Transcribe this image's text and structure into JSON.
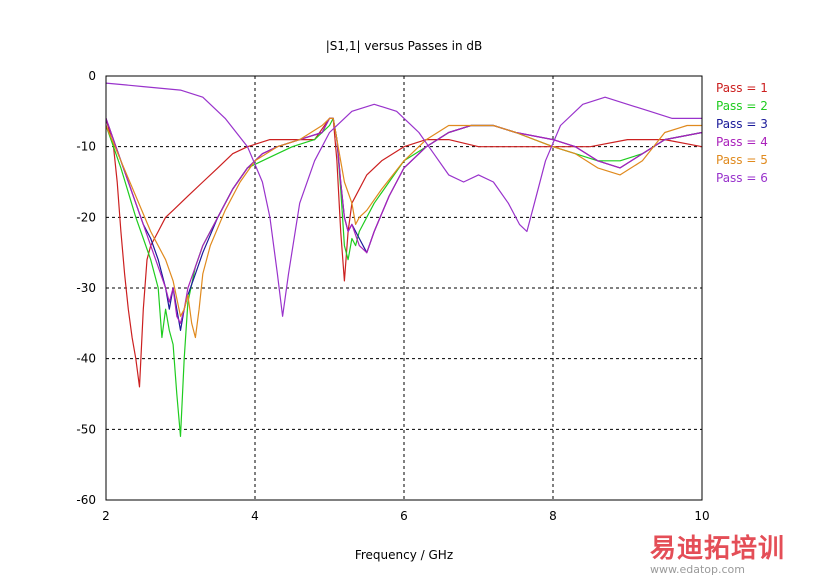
{
  "chart_data": {
    "type": "line",
    "title": "|S1,1| versus Passes in dB",
    "xlabel": "Frequency / GHz",
    "ylabel": "",
    "xlim": [
      2,
      10
    ],
    "ylim": [
      -60,
      0
    ],
    "xticks": [
      2,
      4,
      6,
      8,
      10
    ],
    "yticks": [
      0,
      -10,
      -20,
      -30,
      -40,
      -50,
      -60
    ],
    "grid": true,
    "legend_position": "right",
    "series": [
      {
        "name": "Pass = 1",
        "color": "#cc2020",
        "points": [
          [
            2.0,
            -6
          ],
          [
            2.1,
            -10
          ],
          [
            2.15,
            -15
          ],
          [
            2.2,
            -22
          ],
          [
            2.25,
            -28
          ],
          [
            2.3,
            -33
          ],
          [
            2.35,
            -37
          ],
          [
            2.4,
            -40
          ],
          [
            2.45,
            -44
          ],
          [
            2.5,
            -33
          ],
          [
            2.55,
            -26
          ],
          [
            2.6,
            -24
          ],
          [
            2.7,
            -22
          ],
          [
            2.8,
            -20
          ],
          [
            2.9,
            -19
          ],
          [
            3.0,
            -18
          ],
          [
            3.1,
            -17
          ],
          [
            3.3,
            -15
          ],
          [
            3.5,
            -13
          ],
          [
            3.7,
            -11
          ],
          [
            3.9,
            -10
          ],
          [
            4.2,
            -9
          ],
          [
            4.5,
            -9
          ],
          [
            4.8,
            -9
          ],
          [
            5.0,
            -6
          ],
          [
            5.05,
            -6
          ],
          [
            5.1,
            -12
          ],
          [
            5.15,
            -22
          ],
          [
            5.2,
            -29
          ],
          [
            5.25,
            -22
          ],
          [
            5.3,
            -18
          ],
          [
            5.5,
            -14
          ],
          [
            5.7,
            -12
          ],
          [
            6.0,
            -10
          ],
          [
            6.3,
            -9
          ],
          [
            6.6,
            -9
          ],
          [
            7.0,
            -10
          ],
          [
            7.5,
            -10
          ],
          [
            8.0,
            -10
          ],
          [
            8.5,
            -10
          ],
          [
            9.0,
            -9
          ],
          [
            9.5,
            -9
          ],
          [
            10.0,
            -10
          ]
        ]
      },
      {
        "name": "Pass = 2",
        "color": "#1fcc1f",
        "points": [
          [
            2.0,
            -7
          ],
          [
            2.2,
            -13
          ],
          [
            2.4,
            -20
          ],
          [
            2.5,
            -23
          ],
          [
            2.6,
            -26
          ],
          [
            2.7,
            -30
          ],
          [
            2.75,
            -37
          ],
          [
            2.8,
            -33
          ],
          [
            2.85,
            -36
          ],
          [
            2.9,
            -38
          ],
          [
            2.95,
            -45
          ],
          [
            3.0,
            -51
          ],
          [
            3.05,
            -40
          ],
          [
            3.1,
            -32
          ],
          [
            3.2,
            -27
          ],
          [
            3.3,
            -24
          ],
          [
            3.5,
            -20
          ],
          [
            3.7,
            -16
          ],
          [
            3.9,
            -13
          ],
          [
            4.1,
            -12
          ],
          [
            4.3,
            -11
          ],
          [
            4.5,
            -10
          ],
          [
            4.8,
            -9
          ],
          [
            5.0,
            -7
          ],
          [
            5.05,
            -6
          ],
          [
            5.1,
            -9
          ],
          [
            5.15,
            -16
          ],
          [
            5.2,
            -24
          ],
          [
            5.25,
            -26
          ],
          [
            5.3,
            -23
          ],
          [
            5.35,
            -24
          ],
          [
            5.4,
            -22
          ],
          [
            5.6,
            -18
          ],
          [
            5.8,
            -15
          ],
          [
            6.0,
            -12
          ],
          [
            6.3,
            -10
          ],
          [
            6.6,
            -8
          ],
          [
            6.9,
            -7
          ],
          [
            7.2,
            -7
          ],
          [
            7.5,
            -8
          ],
          [
            8.0,
            -10
          ],
          [
            8.3,
            -11
          ],
          [
            8.6,
            -12
          ],
          [
            8.9,
            -12
          ],
          [
            9.2,
            -11
          ],
          [
            9.5,
            -9
          ],
          [
            10.0,
            -8
          ]
        ]
      },
      {
        "name": "Pass = 3",
        "color": "#1a1a99",
        "points": [
          [
            2.0,
            -6
          ],
          [
            2.2,
            -12
          ],
          [
            2.4,
            -18
          ],
          [
            2.5,
            -21
          ],
          [
            2.6,
            -23
          ],
          [
            2.7,
            -26
          ],
          [
            2.8,
            -30
          ],
          [
            2.85,
            -33
          ],
          [
            2.9,
            -30
          ],
          [
            2.95,
            -33
          ],
          [
            3.0,
            -36
          ],
          [
            3.05,
            -33
          ],
          [
            3.1,
            -31
          ],
          [
            3.2,
            -28
          ],
          [
            3.3,
            -25
          ],
          [
            3.5,
            -20
          ],
          [
            3.7,
            -16
          ],
          [
            3.9,
            -13
          ],
          [
            4.1,
            -11
          ],
          [
            4.3,
            -10
          ],
          [
            4.6,
            -9
          ],
          [
            4.9,
            -8
          ],
          [
            5.0,
            -6
          ],
          [
            5.05,
            -6
          ],
          [
            5.1,
            -9
          ],
          [
            5.15,
            -15
          ],
          [
            5.2,
            -20
          ],
          [
            5.25,
            -22
          ],
          [
            5.3,
            -21
          ],
          [
            5.4,
            -23
          ],
          [
            5.5,
            -25
          ],
          [
            5.6,
            -22
          ],
          [
            5.8,
            -17
          ],
          [
            6.0,
            -13
          ],
          [
            6.3,
            -10
          ],
          [
            6.6,
            -8
          ],
          [
            6.9,
            -7
          ],
          [
            7.2,
            -7
          ],
          [
            7.5,
            -8
          ],
          [
            8.0,
            -9
          ],
          [
            8.3,
            -10
          ],
          [
            8.6,
            -12
          ],
          [
            8.9,
            -13
          ],
          [
            9.2,
            -11
          ],
          [
            9.5,
            -9
          ],
          [
            10.0,
            -8
          ]
        ]
      },
      {
        "name": "Pass = 4",
        "color": "#aa22bb",
        "points": [
          [
            2.0,
            -6
          ],
          [
            2.2,
            -12
          ],
          [
            2.4,
            -18
          ],
          [
            2.5,
            -21
          ],
          [
            2.6,
            -24
          ],
          [
            2.7,
            -27
          ],
          [
            2.8,
            -30
          ],
          [
            2.85,
            -32
          ],
          [
            2.9,
            -30
          ],
          [
            2.95,
            -34
          ],
          [
            3.0,
            -35
          ],
          [
            3.05,
            -33
          ],
          [
            3.1,
            -30
          ],
          [
            3.2,
            -27
          ],
          [
            3.3,
            -24
          ],
          [
            3.5,
            -20
          ],
          [
            3.7,
            -16
          ],
          [
            3.9,
            -13
          ],
          [
            4.1,
            -11
          ],
          [
            4.3,
            -10
          ],
          [
            4.6,
            -9
          ],
          [
            4.9,
            -8
          ],
          [
            5.0,
            -6
          ],
          [
            5.05,
            -6
          ],
          [
            5.1,
            -9
          ],
          [
            5.15,
            -15
          ],
          [
            5.2,
            -20
          ],
          [
            5.25,
            -22
          ],
          [
            5.3,
            -21
          ],
          [
            5.4,
            -24
          ],
          [
            5.5,
            -25
          ],
          [
            5.6,
            -22
          ],
          [
            5.8,
            -17
          ],
          [
            6.0,
            -13
          ],
          [
            6.3,
            -10
          ],
          [
            6.6,
            -8
          ],
          [
            6.9,
            -7
          ],
          [
            7.2,
            -7
          ],
          [
            7.5,
            -8
          ],
          [
            8.0,
            -9
          ],
          [
            8.3,
            -10
          ],
          [
            8.6,
            -12
          ],
          [
            8.9,
            -13
          ],
          [
            9.2,
            -11
          ],
          [
            9.5,
            -9
          ],
          [
            10.0,
            -8
          ]
        ]
      },
      {
        "name": "Pass = 5",
        "color": "#e08a1e",
        "points": [
          [
            2.0,
            -7
          ],
          [
            2.2,
            -12
          ],
          [
            2.4,
            -17
          ],
          [
            2.6,
            -22
          ],
          [
            2.8,
            -26
          ],
          [
            2.9,
            -29
          ],
          [
            3.0,
            -34
          ],
          [
            3.05,
            -33
          ],
          [
            3.1,
            -31
          ],
          [
            3.15,
            -35
          ],
          [
            3.2,
            -37
          ],
          [
            3.25,
            -33
          ],
          [
            3.3,
            -28
          ],
          [
            3.4,
            -24
          ],
          [
            3.6,
            -19
          ],
          [
            3.8,
            -15
          ],
          [
            4.0,
            -12
          ],
          [
            4.3,
            -10
          ],
          [
            4.6,
            -9
          ],
          [
            4.9,
            -7
          ],
          [
            5.0,
            -6
          ],
          [
            5.05,
            -6
          ],
          [
            5.1,
            -9
          ],
          [
            5.2,
            -15
          ],
          [
            5.3,
            -18
          ],
          [
            5.35,
            -21
          ],
          [
            5.4,
            -20
          ],
          [
            5.5,
            -19
          ],
          [
            5.7,
            -16
          ],
          [
            6.0,
            -12
          ],
          [
            6.3,
            -9
          ],
          [
            6.6,
            -7
          ],
          [
            6.9,
            -7
          ],
          [
            7.2,
            -7
          ],
          [
            7.5,
            -8
          ],
          [
            8.0,
            -10
          ],
          [
            8.3,
            -11
          ],
          [
            8.6,
            -13
          ],
          [
            8.9,
            -14
          ],
          [
            9.2,
            -12
          ],
          [
            9.5,
            -8
          ],
          [
            9.8,
            -7
          ],
          [
            10.0,
            -7
          ]
        ]
      },
      {
        "name": "Pass = 6",
        "color": "#9933cc",
        "points": [
          [
            2.0,
            -1
          ],
          [
            2.5,
            -1.5
          ],
          [
            3.0,
            -2
          ],
          [
            3.3,
            -3
          ],
          [
            3.6,
            -6
          ],
          [
            3.9,
            -10
          ],
          [
            4.1,
            -15
          ],
          [
            4.2,
            -20
          ],
          [
            4.3,
            -28
          ],
          [
            4.37,
            -34
          ],
          [
            4.45,
            -28
          ],
          [
            4.6,
            -18
          ],
          [
            4.8,
            -12
          ],
          [
            5.0,
            -8
          ],
          [
            5.3,
            -5
          ],
          [
            5.6,
            -4
          ],
          [
            5.9,
            -5
          ],
          [
            6.2,
            -8
          ],
          [
            6.4,
            -11
          ],
          [
            6.6,
            -14
          ],
          [
            6.8,
            -15
          ],
          [
            7.0,
            -14
          ],
          [
            7.2,
            -15
          ],
          [
            7.4,
            -18
          ],
          [
            7.55,
            -21
          ],
          [
            7.65,
            -22
          ],
          [
            7.75,
            -18
          ],
          [
            7.9,
            -12
          ],
          [
            8.1,
            -7
          ],
          [
            8.4,
            -4
          ],
          [
            8.7,
            -3
          ],
          [
            9.0,
            -4
          ],
          [
            9.3,
            -5
          ],
          [
            9.6,
            -6
          ],
          [
            10.0,
            -6
          ]
        ]
      }
    ]
  },
  "watermark": {
    "chinese": "易迪拓培训",
    "url": "www.edatop.com"
  }
}
